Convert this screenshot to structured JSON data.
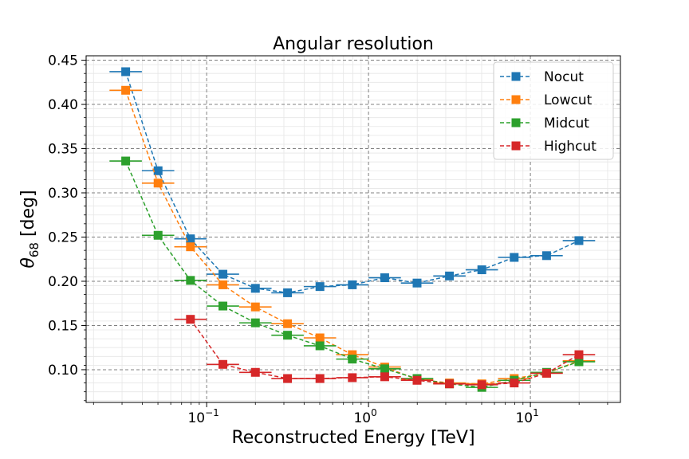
{
  "chart_data": {
    "type": "line",
    "title": "Angular resolution",
    "xlabel": "Reconstructed Energy [TeV]",
    "ylabel": "θ68 [deg]",
    "ylabel_main": "θ",
    "ylabel_sub": "68",
    "ylabel_unit": " [deg]",
    "xscale": "log",
    "xlim": [
      0.018,
      36
    ],
    "ylim": [
      0.063,
      0.455
    ],
    "x_major_ticks": [
      0.1,
      1,
      10
    ],
    "x_tick_labels": [
      {
        "base": "10",
        "exp": "−1"
      },
      {
        "base": "10",
        "exp": "0"
      },
      {
        "base": "10",
        "exp": "1"
      }
    ],
    "y_ticks": [
      0.1,
      0.15,
      0.2,
      0.25,
      0.3,
      0.35,
      0.4,
      0.45
    ],
    "y_tick_labels": [
      "0.10",
      "0.15",
      "0.20",
      "0.25",
      "0.30",
      "0.35",
      "0.40",
      "0.45"
    ],
    "grid": true,
    "legend_position": "top-right",
    "series": [
      {
        "name": "Nocut",
        "color": "#1f77b4",
        "x": [
          0.0316,
          0.0501,
          0.0794,
          0.126,
          0.2,
          0.316,
          0.501,
          0.794,
          1.259,
          1.995,
          3.162,
          5.012,
          7.943,
          12.59,
          19.95
        ],
        "y": [
          0.437,
          0.325,
          0.248,
          0.208,
          0.192,
          0.187,
          0.194,
          0.196,
          0.204,
          0.198,
          0.206,
          0.213,
          0.227,
          0.229,
          0.246
        ]
      },
      {
        "name": "Lowcut",
        "color": "#ff7f0e",
        "x": [
          0.0316,
          0.0501,
          0.0794,
          0.126,
          0.2,
          0.316,
          0.501,
          0.794,
          1.259,
          1.995,
          3.162,
          5.012,
          7.943,
          12.59,
          19.95
        ],
        "y": [
          0.416,
          0.311,
          0.239,
          0.196,
          0.171,
          0.152,
          0.136,
          0.117,
          0.103,
          0.089,
          0.085,
          0.084,
          0.09,
          0.096,
          0.11
        ]
      },
      {
        "name": "Midcut",
        "color": "#2ca02c",
        "x": [
          0.0316,
          0.0501,
          0.0794,
          0.126,
          0.2,
          0.316,
          0.501,
          0.794,
          1.259,
          1.995,
          3.162,
          5.012,
          7.943,
          12.59,
          19.95
        ],
        "y": [
          0.336,
          0.252,
          0.201,
          0.172,
          0.153,
          0.139,
          0.127,
          0.112,
          0.101,
          0.09,
          0.084,
          0.08,
          0.088,
          0.097,
          0.109
        ]
      },
      {
        "name": "Highcut",
        "color": "#d62728",
        "x": [
          0.0794,
          0.126,
          0.2,
          0.316,
          0.501,
          0.794,
          1.259,
          1.995,
          3.162,
          5.012,
          7.943,
          12.59,
          19.95
        ],
        "y": [
          0.157,
          0.106,
          0.097,
          0.09,
          0.09,
          0.091,
          0.092,
          0.088,
          0.084,
          0.083,
          0.085,
          0.096,
          0.117
        ]
      }
    ]
  }
}
